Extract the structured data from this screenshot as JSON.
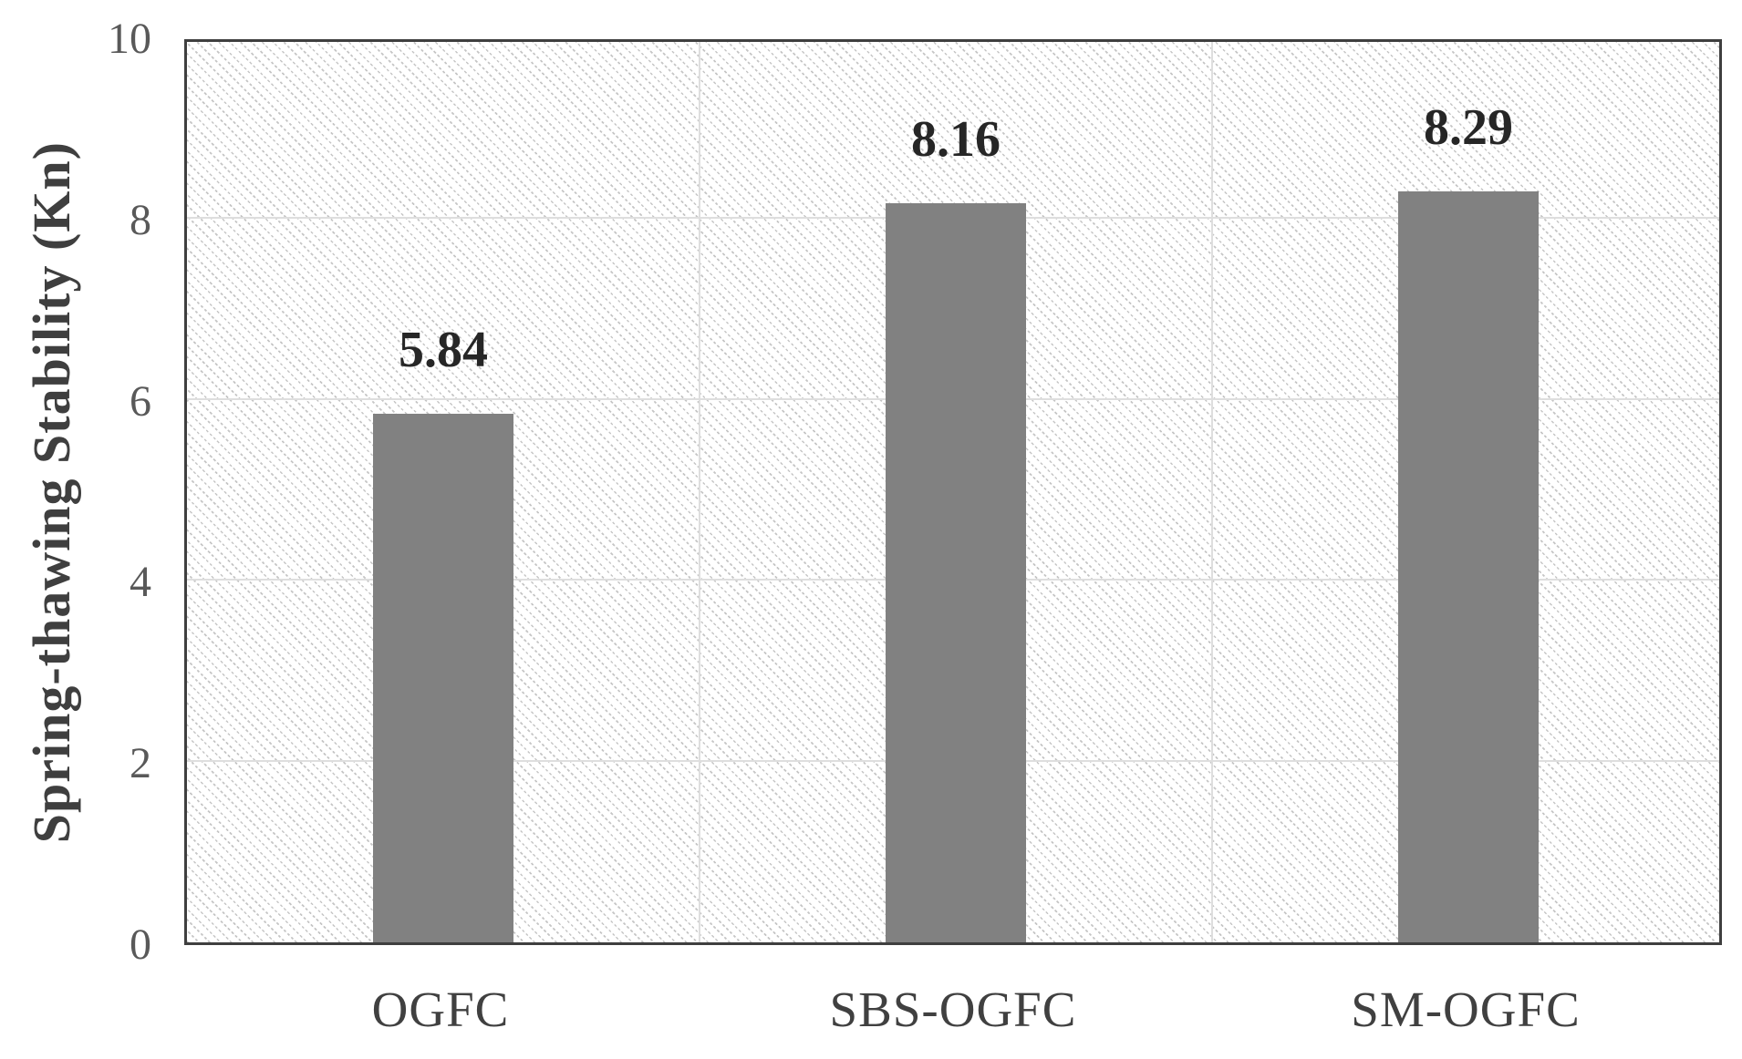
{
  "chart_data": {
    "type": "bar",
    "title": "",
    "categories": [
      "OGFC",
      "SBS-OGFC",
      "SM-OGFC"
    ],
    "values": [
      5.84,
      8.16,
      8.29
    ],
    "value_labels": [
      "5.84",
      "8.16",
      "8.29"
    ],
    "xlabel": "",
    "ylabel": "Spring-thawing Stability (Kn)",
    "ylim": [
      0,
      10
    ],
    "yticks": [
      0,
      2,
      4,
      6,
      8,
      10
    ],
    "grid": true,
    "legend_position": "none",
    "bar_color": "#818181",
    "gridline_color": "#dedede",
    "axis_border_color": "#3f3f3f",
    "tick_label_color": "#595959",
    "data_label_color": "#262626",
    "plot_background": "white with light dotted diagonal hatch"
  }
}
